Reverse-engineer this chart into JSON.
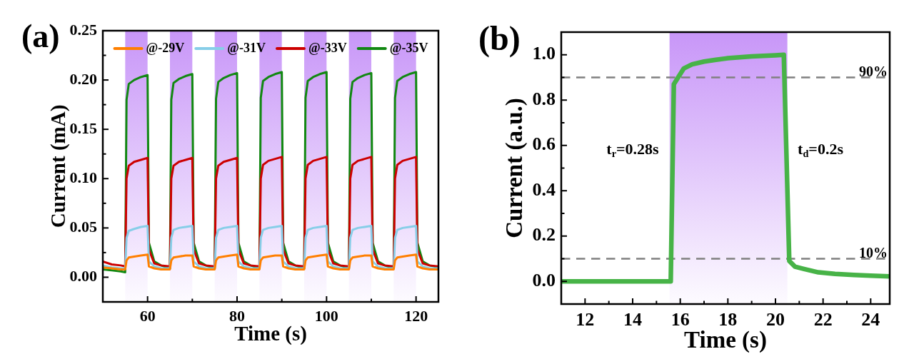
{
  "chart_data": [
    {
      "type": "line",
      "title": "(a)",
      "xlabel": "Time (s)",
      "ylabel": "Current (mA)",
      "legend": "top",
      "x": [
        50,
        52,
        54,
        55,
        55.3,
        55.8,
        57,
        58.5,
        60,
        60.3,
        61.5,
        63,
        65,
        65.3,
        65.8,
        67,
        68.5,
        70,
        70.3,
        71.5,
        73,
        75,
        75.3,
        75.8,
        77,
        78.5,
        80,
        80.3,
        81.5,
        83,
        85,
        85.3,
        85.8,
        87,
        88.5,
        90,
        90.3,
        91.5,
        93,
        95,
        95.3,
        95.8,
        97,
        98.5,
        100,
        100.3,
        101.5,
        103,
        105,
        105.3,
        105.8,
        107,
        108.5,
        110,
        110.3,
        111.5,
        113,
        115,
        115.3,
        115.8,
        117,
        118.5,
        120,
        120.3,
        121.5,
        123,
        125
      ],
      "series": [
        {
          "name": "@-29V",
          "color": "#ff7f00",
          "values": [
            0.01,
            0.009,
            0.008,
            0.008,
            0.017,
            0.02,
            0.021,
            0.022,
            0.023,
            0.011,
            0.009,
            0.008,
            0.008,
            0.017,
            0.02,
            0.021,
            0.022,
            0.022,
            0.011,
            0.009,
            0.008,
            0.008,
            0.017,
            0.02,
            0.021,
            0.022,
            0.023,
            0.011,
            0.009,
            0.008,
            0.008,
            0.017,
            0.02,
            0.021,
            0.022,
            0.022,
            0.011,
            0.009,
            0.008,
            0.008,
            0.017,
            0.02,
            0.021,
            0.022,
            0.023,
            0.011,
            0.009,
            0.008,
            0.008,
            0.017,
            0.02,
            0.021,
            0.022,
            0.022,
            0.011,
            0.009,
            0.008,
            0.008,
            0.017,
            0.02,
            0.021,
            0.022,
            0.023,
            0.011,
            0.009,
            0.008,
            0.008
          ]
        },
        {
          "name": "@-31V",
          "color": "#87cee8",
          "values": [
            0.012,
            0.01,
            0.009,
            0.009,
            0.04,
            0.047,
            0.049,
            0.051,
            0.052,
            0.016,
            0.011,
            0.009,
            0.009,
            0.04,
            0.048,
            0.05,
            0.051,
            0.052,
            0.016,
            0.011,
            0.009,
            0.009,
            0.04,
            0.048,
            0.05,
            0.051,
            0.052,
            0.016,
            0.011,
            0.009,
            0.009,
            0.04,
            0.048,
            0.05,
            0.051,
            0.052,
            0.016,
            0.011,
            0.009,
            0.009,
            0.04,
            0.048,
            0.05,
            0.051,
            0.052,
            0.016,
            0.011,
            0.009,
            0.009,
            0.04,
            0.048,
            0.05,
            0.051,
            0.052,
            0.016,
            0.011,
            0.009,
            0.009,
            0.04,
            0.048,
            0.05,
            0.051,
            0.052,
            0.016,
            0.011,
            0.009,
            0.009
          ]
        },
        {
          "name": "@-33V",
          "color": "#cc0000",
          "values": [
            0.016,
            0.013,
            0.012,
            0.011,
            0.1,
            0.113,
            0.117,
            0.119,
            0.121,
            0.028,
            0.014,
            0.012,
            0.011,
            0.1,
            0.113,
            0.117,
            0.119,
            0.121,
            0.028,
            0.014,
            0.012,
            0.011,
            0.1,
            0.113,
            0.117,
            0.119,
            0.121,
            0.028,
            0.014,
            0.012,
            0.011,
            0.1,
            0.114,
            0.118,
            0.12,
            0.122,
            0.028,
            0.014,
            0.012,
            0.011,
            0.1,
            0.114,
            0.118,
            0.12,
            0.122,
            0.028,
            0.014,
            0.012,
            0.011,
            0.1,
            0.114,
            0.118,
            0.12,
            0.122,
            0.028,
            0.014,
            0.012,
            0.011,
            0.1,
            0.114,
            0.118,
            0.12,
            0.122,
            0.028,
            0.014,
            0.012,
            0.011
          ]
        },
        {
          "name": "@-35V",
          "color": "#118811",
          "values": [
            0.008,
            0.007,
            0.006,
            0.005,
            0.18,
            0.196,
            0.2,
            0.203,
            0.205,
            0.035,
            0.016,
            0.012,
            0.009,
            0.18,
            0.197,
            0.201,
            0.204,
            0.206,
            0.035,
            0.016,
            0.012,
            0.009,
            0.181,
            0.198,
            0.202,
            0.205,
            0.207,
            0.035,
            0.016,
            0.012,
            0.009,
            0.182,
            0.199,
            0.203,
            0.206,
            0.208,
            0.035,
            0.016,
            0.012,
            0.009,
            0.182,
            0.199,
            0.203,
            0.206,
            0.208,
            0.035,
            0.016,
            0.012,
            0.009,
            0.181,
            0.198,
            0.202,
            0.205,
            0.207,
            0.035,
            0.016,
            0.012,
            0.009,
            0.182,
            0.199,
            0.203,
            0.206,
            0.208,
            0.035,
            0.016,
            0.012,
            0.01
          ]
        }
      ],
      "xlim": [
        50,
        125
      ],
      "xticks": [
        60,
        {
          "value": 70,
          "label": null
        },
        80,
        {
          "value": 90,
          "label": null
        },
        100,
        {
          "value": 110,
          "label": null
        },
        120
      ],
      "ylim": [
        -0.025,
        0.25
      ],
      "yticks": [
        {
          "value": 0,
          "label": "0.00"
        },
        {
          "value": 0.025,
          "label": null
        },
        0.05,
        {
          "value": 0.075,
          "label": null
        },
        {
          "value": 0.1,
          "label": "0.10"
        },
        {
          "value": 0.125,
          "label": null
        },
        0.15,
        {
          "value": 0.175,
          "label": null
        },
        {
          "value": 0.2,
          "label": "0.20"
        },
        {
          "value": 0.225,
          "label": null
        },
        0.25
      ],
      "bands": [
        {
          "axis": "x",
          "from": 55,
          "to": 60,
          "color": "#c896f8"
        },
        {
          "axis": "x",
          "from": 65,
          "to": 70,
          "color": "#c896f8"
        },
        {
          "axis": "x",
          "from": 75,
          "to": 80,
          "color": "#c896f8"
        },
        {
          "axis": "x",
          "from": 85,
          "to": 90,
          "color": "#c896f8"
        },
        {
          "axis": "x",
          "from": 95,
          "to": 100,
          "color": "#c896f8"
        },
        {
          "axis": "x",
          "from": 105,
          "to": 110,
          "color": "#c896f8"
        },
        {
          "axis": "x",
          "from": 115,
          "to": 120,
          "color": "#c896f8"
        }
      ]
    },
    {
      "type": "line",
      "title": "(b)",
      "xlabel": "Time (s)",
      "ylabel": "Current (a.u.)",
      "x": [
        11,
        15.6,
        15.73,
        16.15,
        16.5,
        17,
        17.5,
        18,
        19,
        20,
        20.35,
        20.58,
        20.82,
        21.2,
        21.8,
        22.5,
        23.3,
        24,
        24.8
      ],
      "series": [
        {
          "color": "#47b347",
          "values": [
            0,
            0,
            0.87,
            0.94,
            0.958,
            0.97,
            0.978,
            0.985,
            0.993,
            0.998,
            1.0,
            0.09,
            0.065,
            0.055,
            0.04,
            0.033,
            0.028,
            0.025,
            0.022
          ]
        }
      ],
      "xlim": [
        11,
        24.8
      ],
      "xticks": [
        12,
        {
          "value": 13,
          "label": null
        },
        14,
        {
          "value": 15,
          "label": null
        },
        16,
        {
          "value": 17,
          "label": null
        },
        18,
        {
          "value": 19,
          "label": null
        },
        20,
        {
          "value": 21,
          "label": null
        },
        22,
        {
          "value": 23,
          "label": null
        },
        24
      ],
      "ylim": [
        -0.1,
        1.1
      ],
      "yticks": [
        {
          "value": 0,
          "label": "0.0"
        },
        {
          "value": 0.1,
          "label": null
        },
        0.2,
        {
          "value": 0.3,
          "label": null
        },
        0.4,
        {
          "value": 0.5,
          "label": null
        },
        0.6,
        {
          "value": 0.7,
          "label": null
        },
        0.8,
        {
          "value": 0.9,
          "label": null
        },
        {
          "value": 1,
          "label": "1.0"
        }
      ],
      "bands": [
        {
          "axis": "x",
          "from": 15.55,
          "to": 20.5,
          "color": "#c896f8"
        }
      ],
      "ref_lines": [
        {
          "axis": "y",
          "value": 0.9,
          "label": "90%",
          "color": "#808080",
          "line_style": "dashed"
        },
        {
          "axis": "y",
          "value": 0.1,
          "label": "10%",
          "color": "#808080",
          "line_style": "dashed"
        }
      ],
      "annotations": [
        "t$_{r}$=0.28s",
        "t$_{d}$=0.2s"
      ]
    }
  ]
}
